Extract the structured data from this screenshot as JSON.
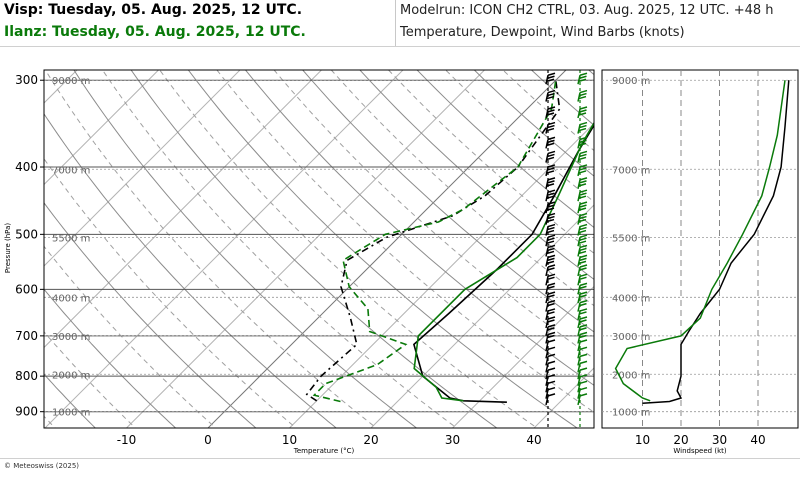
{
  "header": {
    "station1": "Visp: Tuesday, 05. Aug. 2025, 12 UTC.",
    "station2": "Ilanz: Tuesday, 05. Aug. 2025, 12 UTC.",
    "modelrun": "Modelrun: ICON CH2 CTRL, 03. Aug. 2025, 12 UTC. +48 h",
    "subtitle": "Temperature, Dewpoint, Wind Barbs (knots)"
  },
  "footer": {
    "copyright": "© Meteoswiss (2025)"
  },
  "colors": {
    "station1": "#000000",
    "station2": "#0a7a0a",
    "grid": "#aaaaaa",
    "dry_adiabat": "#999999"
  },
  "chart_data": [
    {
      "type": "line",
      "subtype": "skew-T log-P",
      "xlabel": "Temperature (°C)",
      "ylabel": "Pressure (hPa)",
      "xlim": [
        -20,
        45
      ],
      "ylim": [
        950,
        290
      ],
      "x_ticks": [
        -10,
        0,
        10,
        20,
        30,
        40
      ],
      "y_ticks": [
        300,
        400,
        500,
        600,
        700,
        800,
        900
      ],
      "height_labels": [
        {
          "p": 300,
          "label": "9000 m"
        },
        {
          "p": 403,
          "label": "7000 m"
        },
        {
          "p": 505,
          "label": "5500 m"
        },
        {
          "p": 616,
          "label": "4000 m"
        },
        {
          "p": 700,
          "label": "3000 m"
        },
        {
          "p": 795,
          "label": "2000 m"
        },
        {
          "p": 900,
          "label": "1000 m"
        }
      ],
      "series": [
        {
          "name": "Visp temperature",
          "points": [
            [
              33.5,
              872
            ],
            [
              28,
              868
            ],
            [
              26,
              860
            ],
            [
              20,
              800
            ],
            [
              15,
              720
            ],
            [
              15.5,
              650
            ],
            [
              16,
              560
            ],
            [
              16,
              500
            ],
            [
              14,
              440
            ],
            [
              11.5,
              380
            ],
            [
              8.5,
              310
            ],
            [
              7,
              300
            ]
          ]
        },
        {
          "name": "Visp dewpoint",
          "points": [
            [
              10,
              868
            ],
            [
              8,
              850
            ],
            [
              7.5,
              800
            ],
            [
              8,
              720
            ],
            [
              4,
              660
            ],
            [
              -1,
              595
            ],
            [
              -3.5,
              545
            ],
            [
              -1.5,
              505
            ],
            [
              4,
              470
            ],
            [
              5.5,
              440
            ],
            [
              6,
              400
            ],
            [
              4,
              330
            ],
            [
              0,
              300
            ]
          ]
        },
        {
          "name": "Ilanz temperature",
          "points": [
            [
              28,
              868
            ],
            [
              25,
              860
            ],
            [
              23,
              830
            ],
            [
              18,
              780
            ],
            [
              14.5,
              700
            ],
            [
              14.5,
              600
            ],
            [
              17,
              540
            ],
            [
              17,
              500
            ],
            [
              14.5,
              440
            ],
            [
              11,
              370
            ],
            [
              8,
              305
            ],
            [
              7,
              300
            ]
          ]
        },
        {
          "name": "Ilanz dewpoint",
          "points": [
            [
              13,
              870
            ],
            [
              9,
              852
            ],
            [
              9,
              820
            ],
            [
              13,
              770
            ],
            [
              14,
              720
            ],
            [
              8,
              690
            ],
            [
              5,
              640
            ],
            [
              0,
              595
            ],
            [
              -4,
              545
            ],
            [
              -2,
              500
            ],
            [
              3,
              480
            ],
            [
              4.5,
              460
            ],
            [
              6,
              400
            ],
            [
              3,
              330
            ],
            [
              0,
              300
            ]
          ]
        }
      ]
    },
    {
      "type": "line",
      "subtype": "wind speed profile",
      "xlabel": "Windspeed (kt)",
      "x_ticks": [
        10,
        20,
        30,
        40
      ],
      "xlim": [
        0,
        48
      ],
      "series": [
        {
          "name": "Visp windspeed",
          "points": [
            [
              10,
              875
            ],
            [
              17,
              870
            ],
            [
              20,
              860
            ],
            [
              19,
              840
            ],
            [
              20,
              800
            ],
            [
              20,
              720
            ],
            [
              22,
              690
            ],
            [
              25,
              650
            ],
            [
              30,
              600
            ],
            [
              33,
              550
            ],
            [
              39,
              500
            ],
            [
              44,
              440
            ],
            [
              46,
              400
            ],
            [
              47,
              350
            ],
            [
              48,
              300
            ]
          ]
        },
        {
          "name": "Ilanz windspeed",
          "points": [
            [
              12,
              868
            ],
            [
              10,
              860
            ],
            [
              5,
              820
            ],
            [
              3,
              780
            ],
            [
              6,
              730
            ],
            [
              20,
              700
            ],
            [
              25,
              660
            ],
            [
              28,
              600
            ],
            [
              32,
              550
            ],
            [
              36,
              500
            ],
            [
              41,
              440
            ],
            [
              43,
              400
            ],
            [
              45,
              360
            ],
            [
              47,
              300
            ]
          ]
        }
      ]
    }
  ]
}
